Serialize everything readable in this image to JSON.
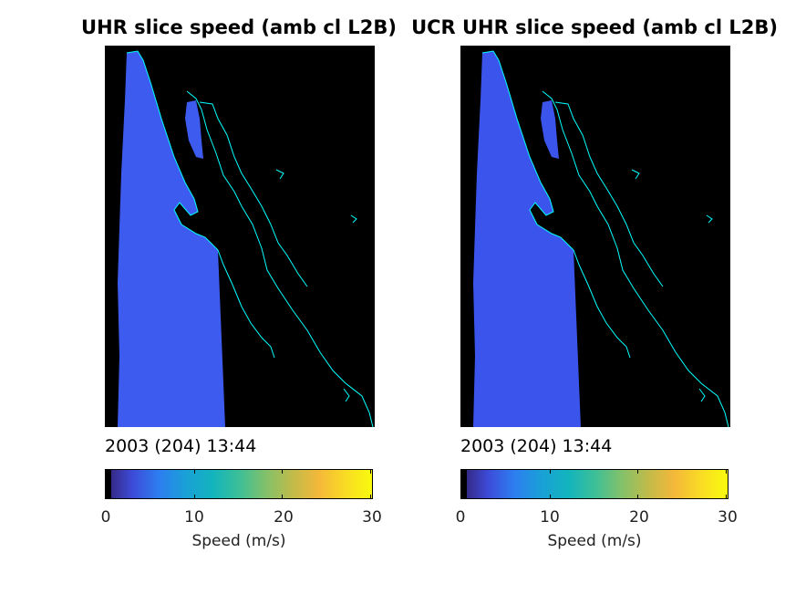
{
  "chart_data": [
    {
      "type": "heatmap",
      "title": "UHR slice speed (amb cl L2B)",
      "date_label": "2003 (204) 13:44",
      "colorbar": {
        "label": "Speed (m/s)",
        "ticks": [
          0,
          10,
          20,
          30
        ],
        "range": [
          0,
          30
        ],
        "colormap": "parula"
      },
      "swath_speed_typical": 5.5,
      "background_color": "#000000",
      "coastline_color": "#00ffff",
      "swath_color": "#3e5bef"
    },
    {
      "type": "heatmap",
      "title": "UCR UHR slice speed (amb cl L2B)",
      "date_label": "2003 (204) 13:44",
      "colorbar": {
        "label": "Speed (m/s)",
        "ticks": [
          0,
          10,
          20,
          30
        ],
        "range": [
          0,
          30
        ],
        "colormap": "parula"
      },
      "swath_speed_typical": 5.2,
      "background_color": "#000000",
      "coastline_color": "#00ffff",
      "swath_color": "#3b55ec"
    }
  ]
}
